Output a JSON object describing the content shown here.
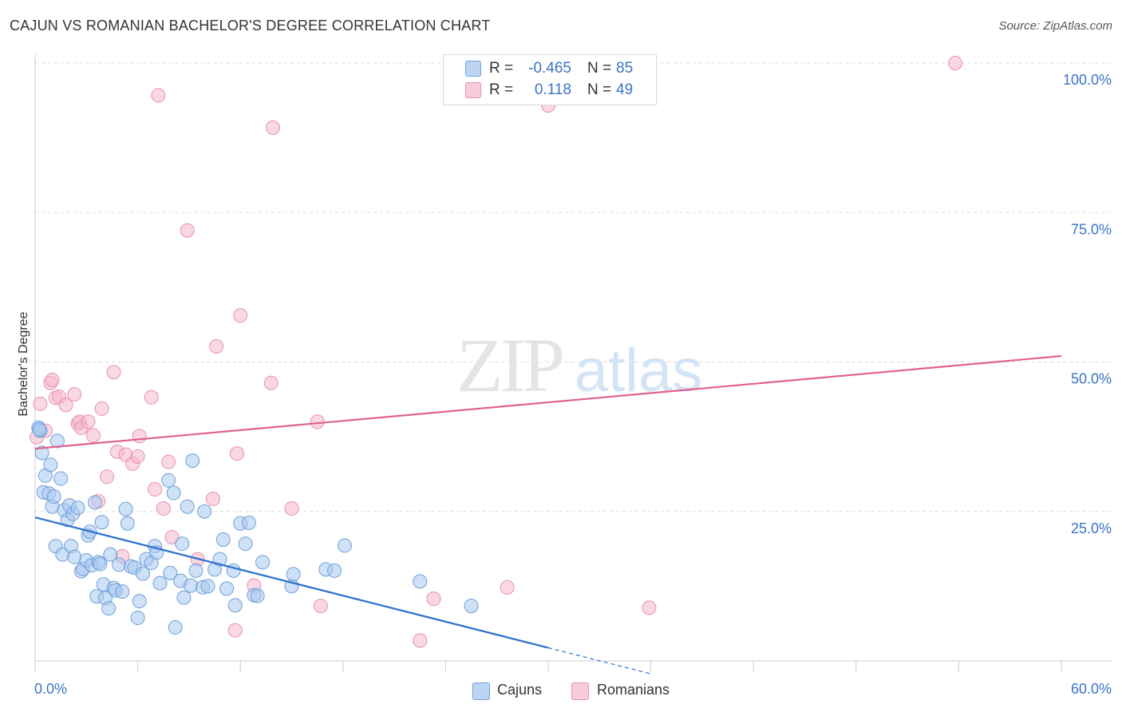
{
  "title": "CAJUN VS ROMANIAN BACHELOR'S DEGREE CORRELATION CHART",
  "source": "Source: ZipAtlas.com",
  "watermark": {
    "zip": "ZIP",
    "atlas": "atlas"
  },
  "colors": {
    "cajun_fill": "#a8c8f0",
    "cajun_stroke": "#6f9fd8",
    "cajun_line": "#2f72d0",
    "romanian_fill": "#f5b8cc",
    "romanian_stroke": "#e890ad",
    "romanian_line": "#e0628f",
    "axis_label_blue": "#3b73c6"
  },
  "legend_top": {
    "rows": [
      {
        "r_label": "R =",
        "r_value": "-0.465",
        "n_label": "N =",
        "n_value": "85"
      },
      {
        "r_label": "R =",
        "r_value": "0.118",
        "n_label": "N =",
        "n_value": "49"
      }
    ]
  },
  "legend_bottom": {
    "cajuns": "Cajuns",
    "romanians": "Romanians"
  },
  "chart_data": {
    "type": "scatter",
    "title": "CAJUN VS ROMANIAN BACHELOR'S DEGREE CORRELATION CHART",
    "xlabel": "",
    "ylabel": "Bachelor's Degree",
    "xlim": [
      0,
      60
    ],
    "ylim": [
      0,
      100
    ],
    "x_tick_labels": {
      "min": "0.0%",
      "max": "60.0%"
    },
    "y_ticks": [
      25,
      50,
      75,
      100
    ],
    "y_tick_labels": [
      "25.0%",
      "50.0%",
      "75.0%",
      "100.0%"
    ],
    "grid": true,
    "legend_position": "bottom-center",
    "series": [
      {
        "name": "Cajuns",
        "r": -0.465,
        "n": 85,
        "trend": {
          "x0": 0,
          "y0": 24.0,
          "x1": 30,
          "y1": 2.2,
          "dash_to_x": 36
        },
        "points": [
          [
            0.2,
            39.0
          ],
          [
            0.3,
            38.5
          ],
          [
            0.4,
            34.8
          ],
          [
            0.5,
            28.2
          ],
          [
            0.6,
            31.0
          ],
          [
            0.8,
            28.0
          ],
          [
            0.9,
            32.8
          ],
          [
            1.0,
            25.8
          ],
          [
            1.1,
            27.5
          ],
          [
            1.2,
            19.2
          ],
          [
            1.3,
            36.8
          ],
          [
            1.5,
            30.5
          ],
          [
            1.6,
            17.8
          ],
          [
            1.7,
            25.2
          ],
          [
            1.9,
            23.6
          ],
          [
            2.0,
            26.0
          ],
          [
            2.1,
            19.2
          ],
          [
            2.2,
            24.6
          ],
          [
            2.3,
            17.4
          ],
          [
            2.5,
            25.6
          ],
          [
            2.7,
            15.0
          ],
          [
            2.8,
            15.4
          ],
          [
            3.0,
            16.8
          ],
          [
            3.1,
            21.0
          ],
          [
            3.2,
            21.6
          ],
          [
            3.3,
            16.0
          ],
          [
            3.5,
            26.5
          ],
          [
            3.6,
            10.8
          ],
          [
            3.7,
            16.5
          ],
          [
            3.8,
            16.2
          ],
          [
            3.9,
            23.2
          ],
          [
            4.0,
            12.8
          ],
          [
            4.1,
            10.5
          ],
          [
            4.3,
            8.8
          ],
          [
            4.4,
            17.8
          ],
          [
            4.6,
            12.2
          ],
          [
            4.7,
            11.8
          ],
          [
            4.9,
            16.1
          ],
          [
            5.1,
            11.6
          ],
          [
            5.3,
            25.4
          ],
          [
            5.4,
            23.0
          ],
          [
            5.6,
            15.8
          ],
          [
            5.8,
            15.6
          ],
          [
            6.0,
            7.2
          ],
          [
            6.1,
            10.0
          ],
          [
            6.3,
            14.6
          ],
          [
            6.5,
            17.0
          ],
          [
            6.8,
            16.4
          ],
          [
            7.0,
            19.2
          ],
          [
            7.1,
            18.1
          ],
          [
            7.3,
            13.0
          ],
          [
            7.8,
            30.2
          ],
          [
            7.9,
            14.7
          ],
          [
            8.1,
            28.1
          ],
          [
            8.2,
            5.6
          ],
          [
            8.5,
            13.4
          ],
          [
            8.6,
            19.6
          ],
          [
            8.7,
            10.6
          ],
          [
            8.9,
            25.8
          ],
          [
            9.1,
            12.6
          ],
          [
            9.2,
            33.5
          ],
          [
            9.4,
            15.1
          ],
          [
            9.8,
            12.3
          ],
          [
            9.9,
            25.0
          ],
          [
            10.1,
            12.5
          ],
          [
            10.5,
            15.3
          ],
          [
            10.8,
            17.0
          ],
          [
            11.0,
            20.3
          ],
          [
            11.2,
            12.1
          ],
          [
            11.6,
            15.1
          ],
          [
            11.7,
            9.3
          ],
          [
            12.0,
            23.0
          ],
          [
            12.3,
            19.6
          ],
          [
            12.5,
            23.1
          ],
          [
            12.8,
            11.0
          ],
          [
            13.0,
            10.9
          ],
          [
            13.3,
            16.5
          ],
          [
            15.0,
            12.5
          ],
          [
            15.1,
            14.5
          ],
          [
            17.0,
            15.3
          ],
          [
            17.5,
            15.1
          ],
          [
            18.1,
            19.3
          ],
          [
            22.5,
            13.3
          ],
          [
            25.5,
            9.2
          ],
          [
            0.25,
            38.7
          ]
        ]
      },
      {
        "name": "Romanians",
        "r": 0.118,
        "n": 49,
        "trend": {
          "x0": 0,
          "y0": 35.5,
          "x1": 60,
          "y1": 51.0
        },
        "points": [
          [
            0.1,
            37.4
          ],
          [
            0.3,
            43.0
          ],
          [
            0.6,
            38.5
          ],
          [
            0.9,
            46.5
          ],
          [
            1.0,
            47.0
          ],
          [
            1.2,
            44.0
          ],
          [
            1.4,
            44.2
          ],
          [
            1.8,
            42.8
          ],
          [
            2.3,
            44.6
          ],
          [
            2.5,
            39.7
          ],
          [
            2.6,
            40.0
          ],
          [
            2.7,
            39.0
          ],
          [
            3.1,
            40.0
          ],
          [
            3.4,
            37.7
          ],
          [
            3.7,
            26.7
          ],
          [
            3.9,
            42.2
          ],
          [
            4.2,
            30.8
          ],
          [
            4.6,
            48.3
          ],
          [
            4.8,
            35.0
          ],
          [
            5.1,
            17.5
          ],
          [
            5.3,
            34.5
          ],
          [
            5.7,
            33.0
          ],
          [
            6.0,
            34.2
          ],
          [
            6.1,
            37.6
          ],
          [
            6.8,
            44.1
          ],
          [
            7.0,
            28.7
          ],
          [
            7.2,
            94.6
          ],
          [
            7.5,
            25.5
          ],
          [
            7.8,
            33.3
          ],
          [
            8.0,
            20.7
          ],
          [
            9.5,
            17.0
          ],
          [
            10.4,
            27.1
          ],
          [
            10.6,
            52.6
          ],
          [
            11.7,
            5.1
          ],
          [
            11.8,
            34.7
          ],
          [
            12.0,
            57.8
          ],
          [
            12.8,
            12.6
          ],
          [
            13.8,
            46.5
          ],
          [
            13.9,
            89.2
          ],
          [
            15.0,
            25.5
          ],
          [
            16.5,
            40.0
          ],
          [
            16.7,
            9.2
          ],
          [
            22.5,
            3.4
          ],
          [
            23.3,
            10.4
          ],
          [
            27.6,
            12.3
          ],
          [
            30.0,
            92.9
          ],
          [
            35.9,
            8.9
          ],
          [
            53.8,
            100.0
          ],
          [
            8.9,
            72.0
          ]
        ]
      }
    ]
  }
}
